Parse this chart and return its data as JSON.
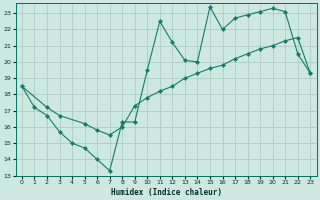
{
  "xlabel": "Humidex (Indice chaleur)",
  "bg_color": "#cce8e0",
  "grid_color": "#b0d0c8",
  "line_color": "#1a7a6a",
  "xlim": [
    -0.5,
    23.5
  ],
  "ylim": [
    13.0,
    23.6
  ],
  "yticks": [
    13,
    14,
    15,
    16,
    17,
    18,
    19,
    20,
    21,
    22,
    23
  ],
  "xticks": [
    0,
    1,
    2,
    3,
    4,
    5,
    6,
    7,
    8,
    9,
    10,
    11,
    12,
    13,
    14,
    15,
    16,
    17,
    18,
    19,
    20,
    21,
    22,
    23
  ],
  "line1_x": [
    0,
    1,
    2,
    3,
    4,
    5,
    6,
    7,
    8,
    9,
    10,
    11,
    12,
    13,
    14,
    15,
    16,
    17,
    18,
    19,
    20,
    21,
    22,
    23
  ],
  "line1_y": [
    18.5,
    17.2,
    16.7,
    15.7,
    15.0,
    14.7,
    14.0,
    13.3,
    16.3,
    16.3,
    19.5,
    22.5,
    21.2,
    20.1,
    20.0,
    23.4,
    22.0,
    22.7,
    22.9,
    23.1,
    23.3,
    23.1,
    20.5,
    19.3
  ],
  "line2_x": [
    0,
    2,
    3,
    5,
    6,
    7,
    8,
    9,
    10,
    11,
    12,
    13,
    14,
    15,
    16,
    17,
    18,
    19,
    20,
    21,
    22,
    23
  ],
  "line2_y": [
    18.5,
    17.2,
    16.7,
    16.2,
    15.8,
    15.5,
    16.0,
    17.3,
    17.8,
    18.2,
    18.5,
    19.0,
    19.3,
    19.6,
    19.8,
    20.2,
    20.5,
    20.8,
    21.0,
    21.3,
    21.5,
    19.3
  ]
}
